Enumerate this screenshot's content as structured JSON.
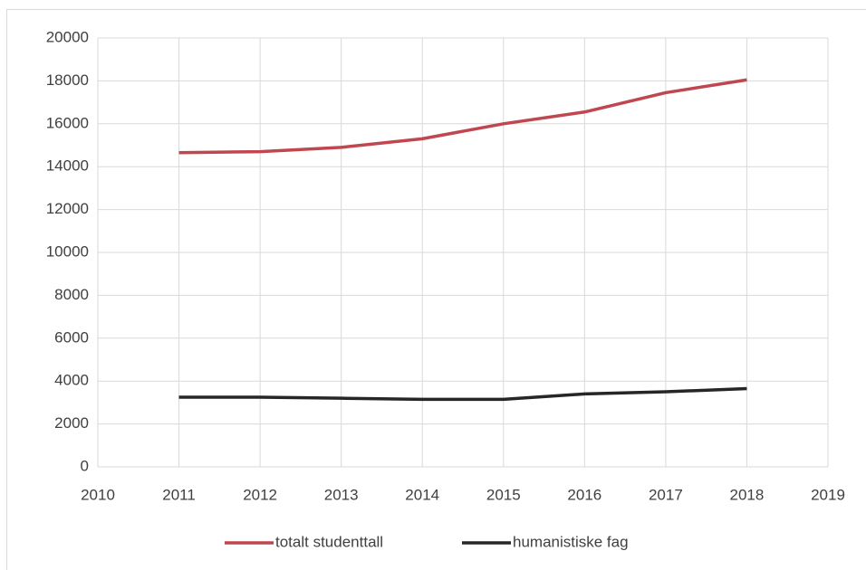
{
  "chart_data": {
    "type": "line",
    "x": [
      2011,
      2012,
      2013,
      2014,
      2015,
      2016,
      2017,
      2018
    ],
    "series": [
      {
        "name": "totalt studenttall",
        "color": "#c0474f",
        "values": [
          14650,
          14700,
          14900,
          15300,
          16000,
          16550,
          17450,
          18050
        ]
      },
      {
        "name": "humanistiske fag",
        "color": "#262626",
        "values": [
          3250,
          3250,
          3200,
          3150,
          3150,
          3400,
          3500,
          3650
        ]
      }
    ],
    "xlim": [
      2010,
      2019
    ],
    "xticks": [
      2010,
      2011,
      2012,
      2013,
      2014,
      2015,
      2016,
      2017,
      2018,
      2019
    ],
    "ylim": [
      0,
      20000
    ],
    "yticks": [
      0,
      2000,
      4000,
      6000,
      8000,
      10000,
      12000,
      14000,
      16000,
      18000,
      20000
    ],
    "grid": true,
    "legend": "bottom"
  }
}
